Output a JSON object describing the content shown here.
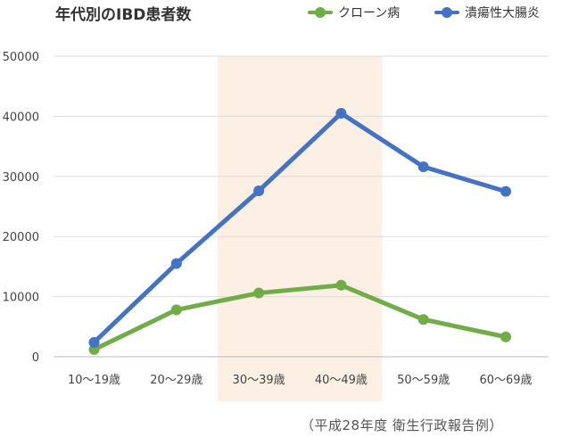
{
  "chart_data": {
    "type": "line",
    "title": "年代別のIBD患者数",
    "xlabel": "",
    "ylabel": "",
    "categories": [
      "10～19歳",
      "20～29歳",
      "30～39歳",
      "40～49歳",
      "50～59歳",
      "60～69歳"
    ],
    "series": [
      {
        "name": "クローン病",
        "color": "#70ad47",
        "values": [
          1200,
          7800,
          10600,
          11900,
          6200,
          3300
        ]
      },
      {
        "name": "潰瘍性大腸炎",
        "color": "#4472c4",
        "values": [
          2400,
          15500,
          27600,
          40500,
          31600,
          27500
        ]
      }
    ],
    "ylim": [
      0,
      50000
    ],
    "yticks": [
      0,
      10000,
      20000,
      30000,
      40000,
      50000
    ],
    "grid": true,
    "legend_position": "top-right",
    "highlight": {
      "from_category": "30～39歳",
      "to_category": "40～49歳",
      "color": "#fcefe3"
    },
    "source_note": "（平成28年度 衛生行政報告例）"
  }
}
